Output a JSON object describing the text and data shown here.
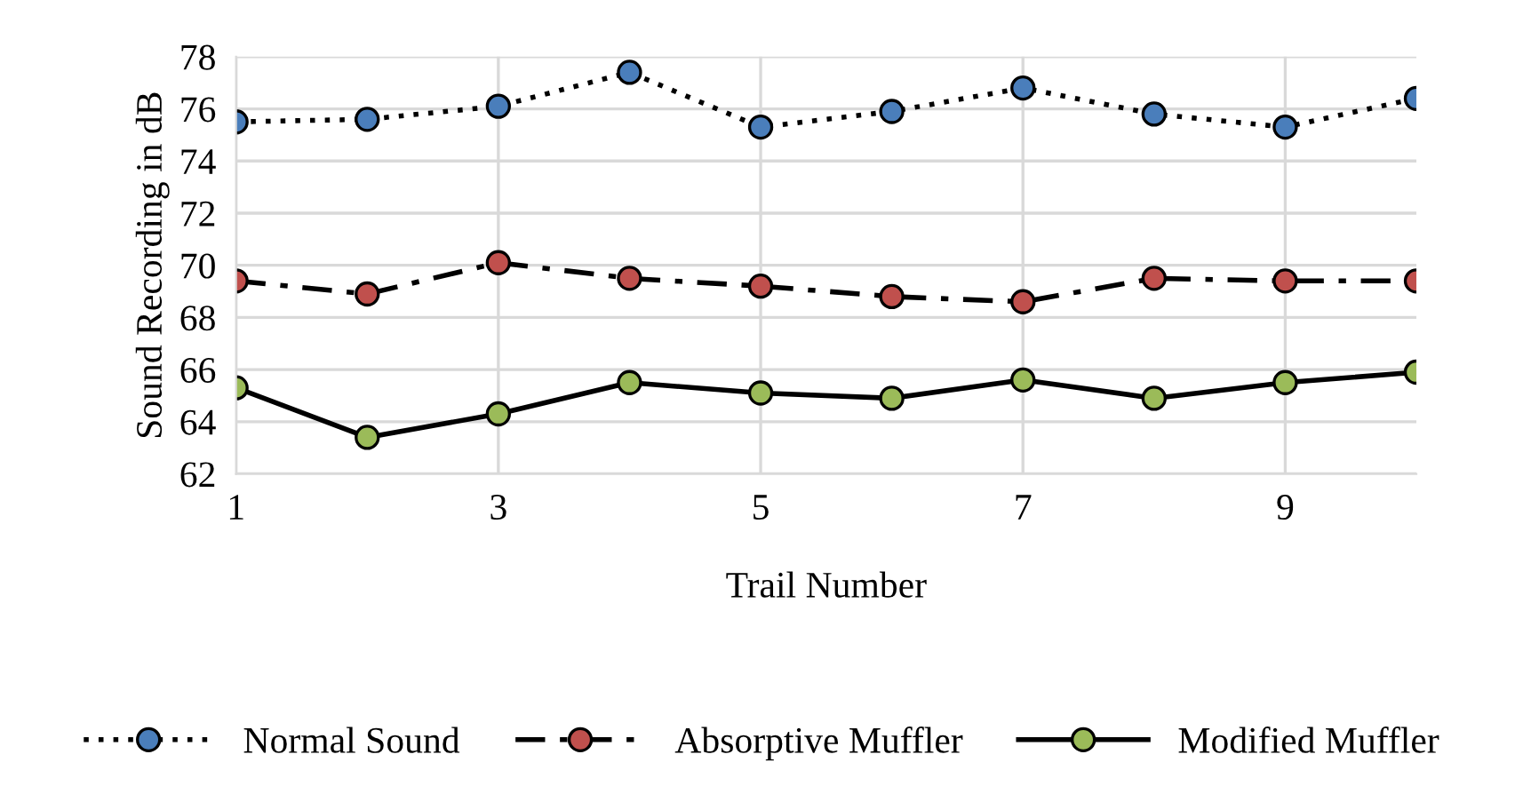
{
  "chart_data": {
    "type": "line",
    "xlabel": "Trail Number",
    "ylabel": "Sound Recording in dB",
    "x": [
      1,
      2,
      3,
      4,
      5,
      6,
      7,
      8,
      9,
      10
    ],
    "xlim": [
      1,
      10
    ],
    "xticks": [
      1,
      3,
      5,
      7,
      9
    ],
    "ylim": [
      62,
      78
    ],
    "yticks": [
      62,
      64,
      66,
      68,
      70,
      72,
      74,
      76,
      78
    ],
    "grid": true,
    "legend": "bottom",
    "marker": "circle",
    "series": [
      {
        "name": "Normal Sound",
        "color": "#4a7ebb",
        "line_style": "dotted",
        "values": [
          75.5,
          75.6,
          76.1,
          77.4,
          75.3,
          75.9,
          76.8,
          75.8,
          75.3,
          76.4
        ]
      },
      {
        "name": "Absorptive Muffler",
        "color": "#c0504d",
        "line_style": "dashed",
        "values": [
          69.4,
          68.9,
          70.1,
          69.5,
          69.2,
          68.8,
          68.6,
          69.5,
          69.4,
          69.4
        ]
      },
      {
        "name": "Modified Muffler",
        "color": "#9bbb59",
        "line_style": "solid",
        "values": [
          65.3,
          63.4,
          64.3,
          65.5,
          65.1,
          64.9,
          65.6,
          64.9,
          65.5,
          65.9
        ]
      }
    ]
  }
}
